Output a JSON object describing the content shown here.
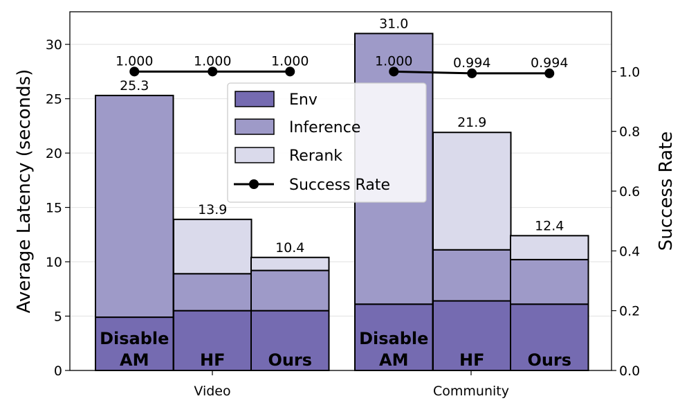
{
  "chart_data": {
    "type": "bar",
    "stacked": true,
    "groups": [
      "Video",
      "Community"
    ],
    "bars": [
      {
        "group": "Video",
        "label": [
          "Disable",
          "AM"
        ],
        "env": 4.9,
        "inference": 20.4,
        "rerank": 0.0,
        "total_label": "25.3",
        "success_rate": 1.0,
        "success_label": "1.000"
      },
      {
        "group": "Video",
        "label": [
          "HF"
        ],
        "env": 5.5,
        "inference": 3.4,
        "rerank": 5.0,
        "total_label": "13.9",
        "success_rate": 1.0,
        "success_label": "1.000"
      },
      {
        "group": "Video",
        "label": [
          "Ours"
        ],
        "env": 5.5,
        "inference": 3.7,
        "rerank": 1.2,
        "total_label": "10.4",
        "success_rate": 1.0,
        "success_label": "1.000"
      },
      {
        "group": "Community",
        "label": [
          "Disable",
          "AM"
        ],
        "env": 6.1,
        "inference": 24.9,
        "rerank": 0.0,
        "total_label": "31.0",
        "success_rate": 1.0,
        "success_label": "1.000"
      },
      {
        "group": "Community",
        "label": [
          "HF"
        ],
        "env": 6.4,
        "inference": 4.7,
        "rerank": 10.8,
        "total_label": "21.9",
        "success_rate": 0.994,
        "success_label": "0.994"
      },
      {
        "group": "Community",
        "label": [
          "Ours"
        ],
        "env": 6.1,
        "inference": 4.1,
        "rerank": 2.2,
        "total_label": "12.4",
        "success_rate": 0.994,
        "success_label": "0.994"
      }
    ],
    "series": [
      {
        "name": "Env",
        "color": "#756bb1"
      },
      {
        "name": "Inference",
        "color": "#9e9ac8"
      },
      {
        "name": "Rerank",
        "color": "#dadaeb"
      },
      {
        "name": "Success Rate",
        "color": "#000000"
      }
    ],
    "ylabel": "Average Latency (seconds)",
    "y2label": "Success Rate",
    "ylim": [
      0,
      33
    ],
    "y2lim": [
      0,
      1.2
    ],
    "yticks": [
      "0",
      "5",
      "10",
      "15",
      "20",
      "25",
      "30"
    ],
    "y2ticks": [
      "0.0",
      "0.2",
      "0.4",
      "0.6",
      "0.8",
      "1.0"
    ],
    "grid": true,
    "legend_position": "upper-center"
  }
}
